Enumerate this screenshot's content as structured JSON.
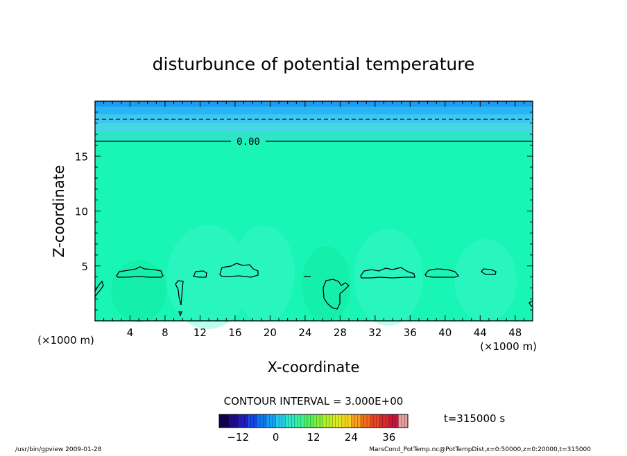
{
  "chart_data": {
    "type": "heatmap",
    "title": "disturbunce of potential temperature",
    "xlabel": "X-coordinate",
    "ylabel": "Z-coordinate",
    "x_unit_label": "(×1000 m)",
    "y_unit_label": "(×1000 m)",
    "xlim": [
      0,
      50
    ],
    "ylim": [
      0,
      20
    ],
    "x_ticks": [
      4,
      8,
      12,
      16,
      20,
      24,
      28,
      32,
      36,
      40,
      44,
      48
    ],
    "y_ticks": [
      5,
      10,
      15
    ],
    "background_field_color": "#19F5B4",
    "bands": [
      {
        "z_from": 19.5,
        "z_to": 20.0,
        "color": "#1E9BF0"
      },
      {
        "z_from": 18.8,
        "z_to": 19.5,
        "color": "#28B4F5"
      },
      {
        "z_from": 18.0,
        "z_to": 18.8,
        "color": "#3CC8F0"
      },
      {
        "z_from": 17.2,
        "z_to": 18.0,
        "color": "#46D7E6"
      },
      {
        "z_from": 16.4,
        "z_to": 17.2,
        "color": "#2DE6C8"
      }
    ],
    "contour_zero_label": "0.00",
    "contour_zero_z": 16.35,
    "dashed_contour_z": 18.35,
    "contour_interval_text": "CONTOUR INTERVAL = 3.000E+00",
    "time_text": "t=315000 s",
    "colorbar": {
      "ticks": [
        -12,
        0,
        12,
        24,
        36
      ],
      "min": -18,
      "max": 42,
      "colors": [
        "#140050",
        "#1E0A8C",
        "#1E1EBE",
        "#1446E6",
        "#0A78F0",
        "#14A0F5",
        "#28C8EB",
        "#32E6C8",
        "#3CF09B",
        "#50F064",
        "#82F03C",
        "#B4F028",
        "#DCEB1E",
        "#F5D21E",
        "#F5A01E",
        "#F06E1E",
        "#E64628",
        "#DC2832",
        "#C8143C",
        "#E6A0A0"
      ]
    }
  },
  "footer": {
    "left": "/usr/bin/gpview   2009-01-28",
    "right": "MarsCond_PotTemp.nc@PotTempDist,x=0:50000,z=0:20000,t=315000"
  }
}
